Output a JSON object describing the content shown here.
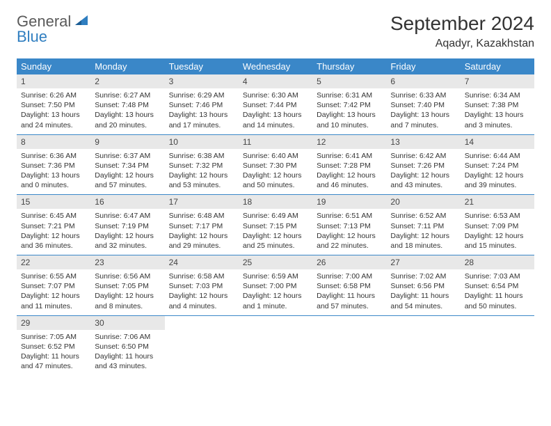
{
  "logo": {
    "text1": "General",
    "text2": "Blue"
  },
  "title": "September 2024",
  "location": "Aqadyr, Kazakhstan",
  "colors": {
    "header_bg": "#3a87c8",
    "header_fg": "#ffffff",
    "daynum_bg": "#e8e8e8",
    "row_divider": "#3a87c8",
    "logo_blue": "#2f7ec0",
    "logo_gray": "#5a5a5a"
  },
  "weekdays": [
    "Sunday",
    "Monday",
    "Tuesday",
    "Wednesday",
    "Thursday",
    "Friday",
    "Saturday"
  ],
  "days": [
    {
      "n": 1,
      "sunrise": "6:26 AM",
      "sunset": "7:50 PM",
      "daylight": "13 hours and 24 minutes."
    },
    {
      "n": 2,
      "sunrise": "6:27 AM",
      "sunset": "7:48 PM",
      "daylight": "13 hours and 20 minutes."
    },
    {
      "n": 3,
      "sunrise": "6:29 AM",
      "sunset": "7:46 PM",
      "daylight": "13 hours and 17 minutes."
    },
    {
      "n": 4,
      "sunrise": "6:30 AM",
      "sunset": "7:44 PM",
      "daylight": "13 hours and 14 minutes."
    },
    {
      "n": 5,
      "sunrise": "6:31 AM",
      "sunset": "7:42 PM",
      "daylight": "13 hours and 10 minutes."
    },
    {
      "n": 6,
      "sunrise": "6:33 AM",
      "sunset": "7:40 PM",
      "daylight": "13 hours and 7 minutes."
    },
    {
      "n": 7,
      "sunrise": "6:34 AM",
      "sunset": "7:38 PM",
      "daylight": "13 hours and 3 minutes."
    },
    {
      "n": 8,
      "sunrise": "6:36 AM",
      "sunset": "7:36 PM",
      "daylight": "13 hours and 0 minutes."
    },
    {
      "n": 9,
      "sunrise": "6:37 AM",
      "sunset": "7:34 PM",
      "daylight": "12 hours and 57 minutes."
    },
    {
      "n": 10,
      "sunrise": "6:38 AM",
      "sunset": "7:32 PM",
      "daylight": "12 hours and 53 minutes."
    },
    {
      "n": 11,
      "sunrise": "6:40 AM",
      "sunset": "7:30 PM",
      "daylight": "12 hours and 50 minutes."
    },
    {
      "n": 12,
      "sunrise": "6:41 AM",
      "sunset": "7:28 PM",
      "daylight": "12 hours and 46 minutes."
    },
    {
      "n": 13,
      "sunrise": "6:42 AM",
      "sunset": "7:26 PM",
      "daylight": "12 hours and 43 minutes."
    },
    {
      "n": 14,
      "sunrise": "6:44 AM",
      "sunset": "7:24 PM",
      "daylight": "12 hours and 39 minutes."
    },
    {
      "n": 15,
      "sunrise": "6:45 AM",
      "sunset": "7:21 PM",
      "daylight": "12 hours and 36 minutes."
    },
    {
      "n": 16,
      "sunrise": "6:47 AM",
      "sunset": "7:19 PM",
      "daylight": "12 hours and 32 minutes."
    },
    {
      "n": 17,
      "sunrise": "6:48 AM",
      "sunset": "7:17 PM",
      "daylight": "12 hours and 29 minutes."
    },
    {
      "n": 18,
      "sunrise": "6:49 AM",
      "sunset": "7:15 PM",
      "daylight": "12 hours and 25 minutes."
    },
    {
      "n": 19,
      "sunrise": "6:51 AM",
      "sunset": "7:13 PM",
      "daylight": "12 hours and 22 minutes."
    },
    {
      "n": 20,
      "sunrise": "6:52 AM",
      "sunset": "7:11 PM",
      "daylight": "12 hours and 18 minutes."
    },
    {
      "n": 21,
      "sunrise": "6:53 AM",
      "sunset": "7:09 PM",
      "daylight": "12 hours and 15 minutes."
    },
    {
      "n": 22,
      "sunrise": "6:55 AM",
      "sunset": "7:07 PM",
      "daylight": "12 hours and 11 minutes."
    },
    {
      "n": 23,
      "sunrise": "6:56 AM",
      "sunset": "7:05 PM",
      "daylight": "12 hours and 8 minutes."
    },
    {
      "n": 24,
      "sunrise": "6:58 AM",
      "sunset": "7:03 PM",
      "daylight": "12 hours and 4 minutes."
    },
    {
      "n": 25,
      "sunrise": "6:59 AM",
      "sunset": "7:00 PM",
      "daylight": "12 hours and 1 minute."
    },
    {
      "n": 26,
      "sunrise": "7:00 AM",
      "sunset": "6:58 PM",
      "daylight": "11 hours and 57 minutes."
    },
    {
      "n": 27,
      "sunrise": "7:02 AM",
      "sunset": "6:56 PM",
      "daylight": "11 hours and 54 minutes."
    },
    {
      "n": 28,
      "sunrise": "7:03 AM",
      "sunset": "6:54 PM",
      "daylight": "11 hours and 50 minutes."
    },
    {
      "n": 29,
      "sunrise": "7:05 AM",
      "sunset": "6:52 PM",
      "daylight": "11 hours and 47 minutes."
    },
    {
      "n": 30,
      "sunrise": "7:06 AM",
      "sunset": "6:50 PM",
      "daylight": "11 hours and 43 minutes."
    }
  ],
  "labels": {
    "sunrise": "Sunrise:",
    "sunset": "Sunset:",
    "daylight": "Daylight:"
  }
}
